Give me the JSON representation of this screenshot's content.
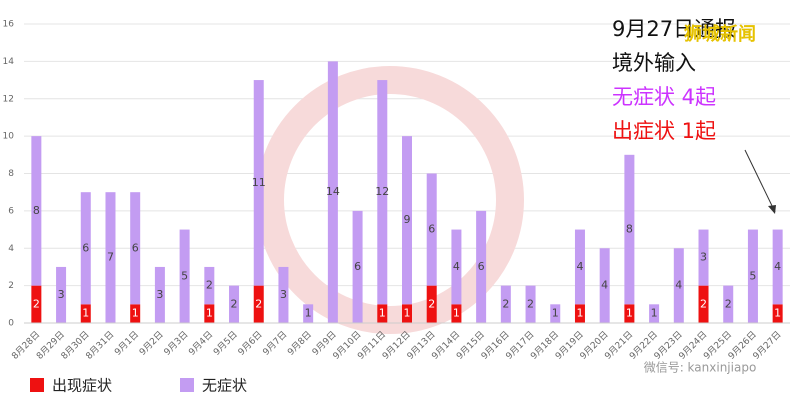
{
  "chart_data": {
    "type": "stacked_bar",
    "categories": [
      "8月28日",
      "8月29日",
      "8月30日",
      "8月31日",
      "9月1日",
      "9月2日",
      "9月3日",
      "9月4日",
      "9月5日",
      "9月6日",
      "9月7日",
      "9月8日",
      "9月9日",
      "9月10日",
      "9月11日",
      "9月12日",
      "9月13日",
      "9月14日",
      "9月15日",
      "9月16日",
      "9月17日",
      "9月18日",
      "9月19日",
      "9月20日",
      "9月21日",
      "9月22日",
      "9月23日",
      "9月24日",
      "9月25日",
      "9月26日",
      "9月27日"
    ],
    "series": [
      {
        "name": "出现症状",
        "color": "#ee1111",
        "values": [
          2,
          0,
          1,
          0,
          1,
          0,
          0,
          1,
          0,
          2,
          0,
          0,
          0,
          0,
          1,
          1,
          2,
          1,
          0,
          0,
          0,
          0,
          1,
          0,
          1,
          0,
          0,
          2,
          0,
          0,
          1
        ]
      },
      {
        "name": "无症状",
        "color": "#c39cf2",
        "values": [
          8,
          3,
          6,
          7,
          6,
          3,
          5,
          2,
          2,
          11,
          3,
          1,
          14,
          6,
          12,
          9,
          6,
          4,
          6,
          2,
          2,
          1,
          4,
          4,
          8,
          1,
          4,
          3,
          2,
          5,
          4
        ]
      }
    ],
    "ylim": [
      0,
      16
    ],
    "yticks": [
      0,
      2,
      4,
      6,
      8,
      10,
      12,
      14,
      16
    ],
    "grid": true,
    "annotations": [
      {
        "text": "9月27日通报",
        "color": "#111111"
      },
      {
        "text": "境外输入",
        "color": "#111111"
      },
      {
        "text": "无症状 4起",
        "color": "#cc33ff"
      },
      {
        "text": "出症状 1起",
        "color": "#ee1111"
      }
    ]
  },
  "watermarks": [
    "狮城新闻",
    "微信号: kanxinjiapo"
  ]
}
